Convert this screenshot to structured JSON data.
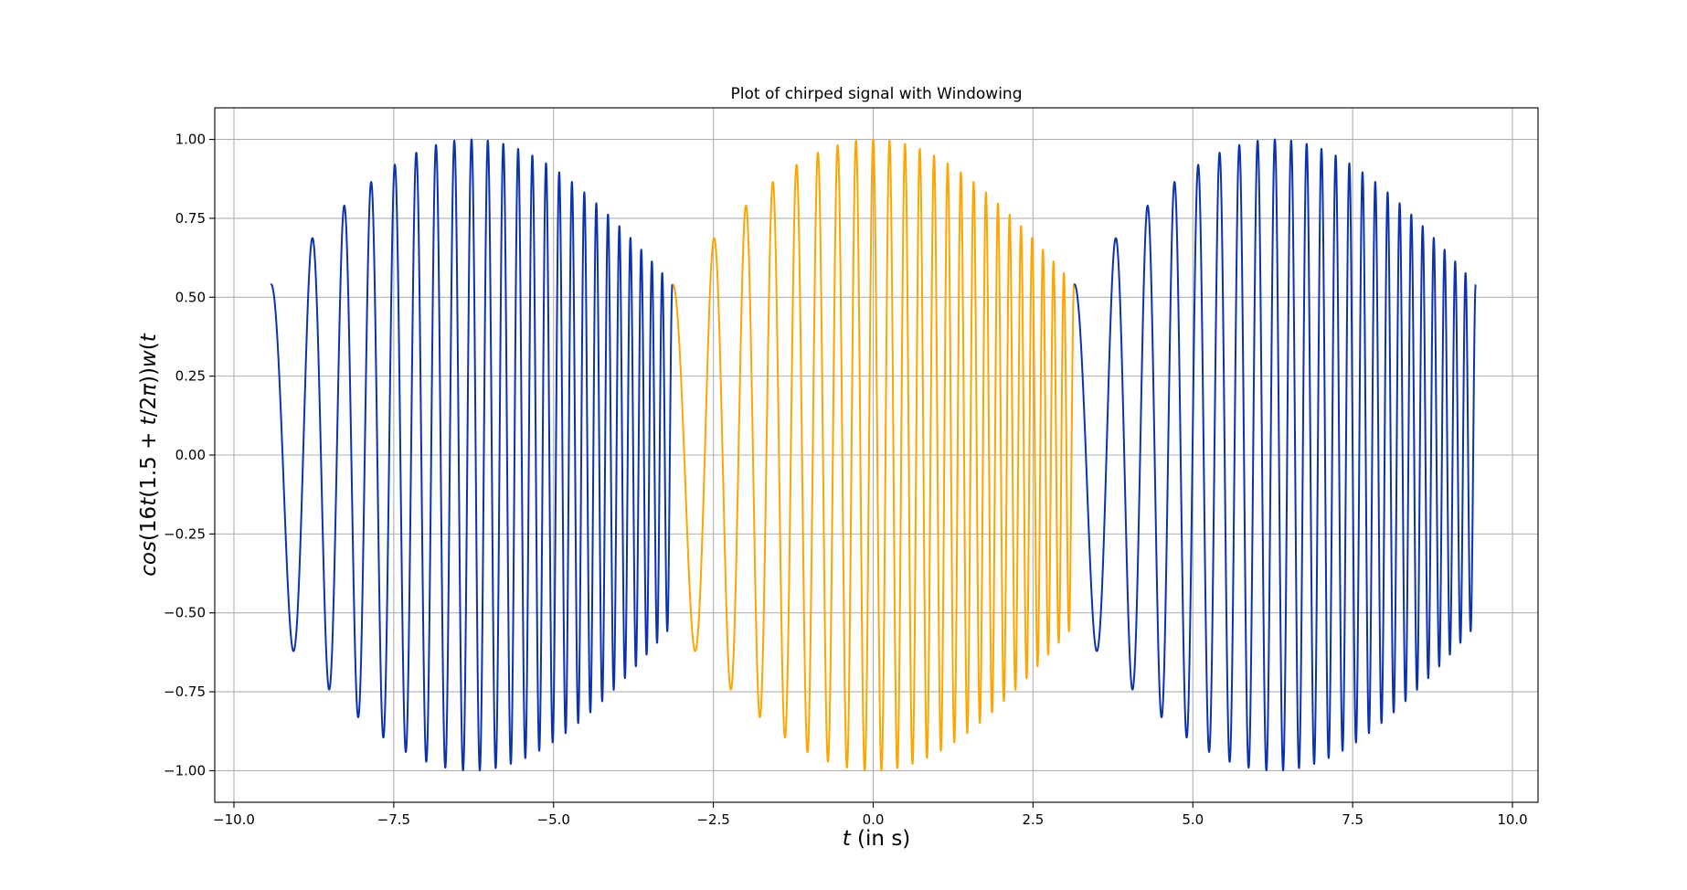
{
  "chart_data": {
    "type": "line",
    "title": "Plot of chirped signal with Windowing",
    "xlabel_italic": "t",
    "xlabel_rest": " (in s)",
    "ylabel_parts": [
      "cos",
      "(16",
      "t",
      "(1.5 + ",
      "t",
      "/2",
      "π",
      "))",
      "w",
      "(",
      "t",
      ")"
    ],
    "xlim": [
      -10.3,
      10.4
    ],
    "ylim": [
      -1.1,
      1.1
    ],
    "xticks": [
      -10.0,
      -7.5,
      -5.0,
      -2.5,
      0.0,
      2.5,
      5.0,
      7.5,
      10.0
    ],
    "xtick_labels": [
      "−10.0",
      "−7.5",
      "−5.0",
      "−2.5",
      "0.0",
      "2.5",
      "5.0",
      "7.5",
      "10.0"
    ],
    "yticks": [
      1.0,
      0.75,
      0.5,
      0.25,
      0.0,
      -0.25,
      -0.5,
      -0.75,
      -1.0
    ],
    "ytick_labels": [
      "1.00",
      "0.75",
      "0.50",
      "0.25",
      "0.00",
      "−0.25",
      "−0.50",
      "−0.75",
      "−1.00"
    ],
    "grid": true,
    "series": [
      {
        "color": "#0b33ad",
        "t_range": [
          -9.42478,
          -3.14159
        ],
        "formula": "cos(16*(t+2π)*(1.5+(t+2π)/(2π))) * w(t+2π), w(u)=0.54+0.46*cos(u/2)"
      },
      {
        "color": "#ffa500",
        "t_range": [
          -3.14159,
          3.14159
        ],
        "formula": "cos(16*t*(1.5+t/(2π))) * w(t), w(u)=0.54+0.46*cos(u/2)"
      },
      {
        "color": "#0b33ad",
        "t_range": [
          3.14159,
          9.42478
        ],
        "formula": "cos(16*(t-2π)*(1.5+(t-2π)/(2π))) * w(t-2π), w(u)=0.54+0.46*cos(u/2)"
      }
    ]
  }
}
